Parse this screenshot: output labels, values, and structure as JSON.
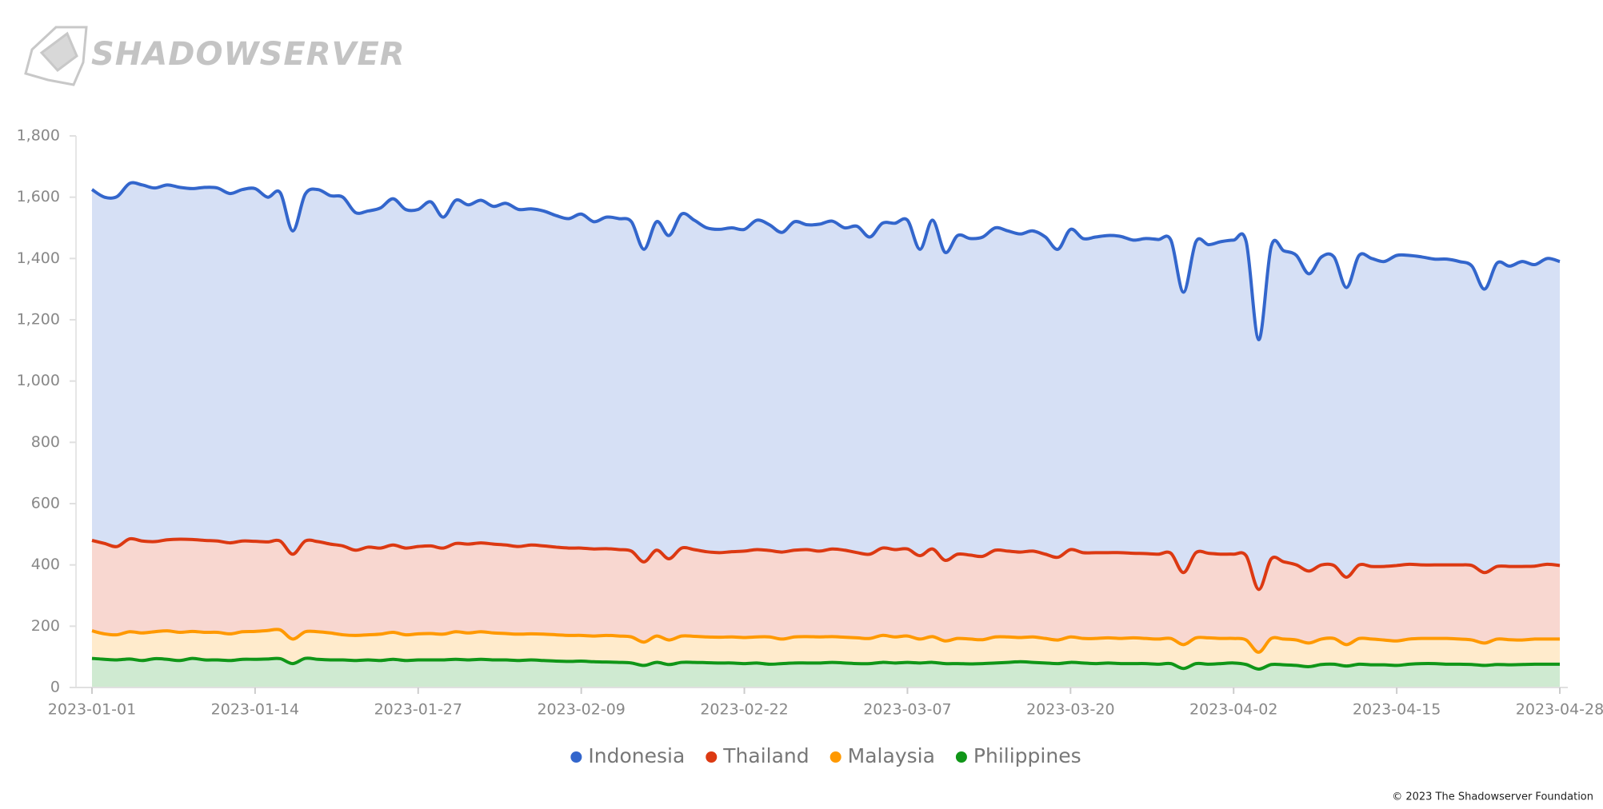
{
  "logo": "SHADOWSERVER",
  "footer": "© 2023 The Shadowserver Foundation",
  "chart_data": {
    "type": "area",
    "categories": [
      "2023-01-01",
      null,
      null,
      null,
      null,
      null,
      null,
      null,
      null,
      null,
      null,
      null,
      null,
      "2023-01-14",
      null,
      null,
      null,
      null,
      null,
      null,
      null,
      null,
      null,
      null,
      null,
      null,
      "2023-01-27",
      null,
      null,
      null,
      null,
      null,
      null,
      null,
      null,
      null,
      null,
      null,
      null,
      "2023-02-09",
      null,
      null,
      null,
      null,
      null,
      null,
      null,
      null,
      null,
      null,
      null,
      null,
      "2023-02-22",
      null,
      null,
      null,
      null,
      null,
      null,
      null,
      null,
      null,
      null,
      null,
      null,
      "2023-03-07",
      null,
      null,
      null,
      null,
      null,
      null,
      null,
      null,
      null,
      null,
      null,
      null,
      "2023-03-20",
      null,
      null,
      null,
      null,
      null,
      null,
      null,
      null,
      null,
      null,
      null,
      null,
      "2023-04-02",
      null,
      null,
      null,
      null,
      null,
      null,
      null,
      null,
      null,
      null,
      null,
      null,
      "2023-04-15",
      null,
      null,
      null,
      null,
      null,
      null,
      null,
      null,
      null,
      null,
      null,
      null,
      "2023-04-28"
    ],
    "series": [
      {
        "name": "Indonesia",
        "color": "#3366cc",
        "fill": "#d6e0f5",
        "values": [
          1625,
          1600,
          1602,
          1645,
          1640,
          1630,
          1640,
          1632,
          1628,
          1632,
          1630,
          1612,
          1625,
          1628,
          1600,
          1615,
          1490,
          1610,
          1625,
          1605,
          1600,
          1550,
          1555,
          1565,
          1595,
          1560,
          1560,
          1585,
          1535,
          1590,
          1575,
          1590,
          1570,
          1580,
          1560,
          1562,
          1555,
          1540,
          1530,
          1545,
          1520,
          1535,
          1530,
          1520,
          1430,
          1520,
          1475,
          1545,
          1525,
          1500,
          1495,
          1500,
          1495,
          1525,
          1510,
          1485,
          1520,
          1510,
          1512,
          1522,
          1500,
          1505,
          1470,
          1515,
          1515,
          1525,
          1430,
          1525,
          1420,
          1475,
          1465,
          1470,
          1500,
          1490,
          1480,
          1490,
          1470,
          1430,
          1495,
          1465,
          1470,
          1475,
          1472,
          1460,
          1465,
          1462,
          1460,
          1290,
          1455,
          1445,
          1455,
          1460,
          1455,
          1135,
          1440,
          1425,
          1410,
          1350,
          1405,
          1405,
          1305,
          1410,
          1400,
          1390,
          1410,
          1410,
          1405,
          1398,
          1398,
          1390,
          1375,
          1300,
          1385,
          1375,
          1390,
          1380,
          1400,
          1390
        ]
      },
      {
        "name": "Thailand",
        "color": "#dc3912",
        "fill": "#f8d7d0",
        "values": [
          480,
          470,
          460,
          485,
          478,
          476,
          482,
          484,
          483,
          480,
          478,
          472,
          478,
          477,
          475,
          478,
          435,
          478,
          476,
          468,
          462,
          448,
          458,
          455,
          465,
          455,
          460,
          462,
          455,
          470,
          468,
          472,
          468,
          465,
          460,
          465,
          462,
          458,
          455,
          455,
          452,
          453,
          450,
          445,
          410,
          448,
          420,
          455,
          450,
          443,
          440,
          443,
          445,
          450,
          447,
          442,
          448,
          450,
          445,
          452,
          448,
          440,
          435,
          455,
          450,
          452,
          430,
          452,
          415,
          435,
          432,
          428,
          448,
          445,
          442,
          445,
          435,
          425,
          450,
          440,
          440,
          440,
          440,
          438,
          437,
          435,
          438,
          375,
          440,
          438,
          435,
          435,
          430,
          320,
          420,
          410,
          400,
          380,
          400,
          398,
          360,
          400,
          395,
          395,
          398,
          402,
          400,
          400,
          400,
          400,
          398,
          375,
          395,
          395,
          395,
          396,
          402,
          398
        ]
      },
      {
        "name": "Malaysia",
        "color": "#ff9900",
        "fill": "#ffebcc",
        "values": [
          185,
          175,
          172,
          182,
          178,
          182,
          185,
          180,
          183,
          180,
          180,
          175,
          182,
          183,
          186,
          188,
          158,
          182,
          182,
          178,
          172,
          170,
          172,
          174,
          180,
          172,
          175,
          176,
          174,
          182,
          178,
          182,
          178,
          176,
          174,
          175,
          174,
          172,
          170,
          170,
          168,
          170,
          168,
          165,
          148,
          168,
          155,
          168,
          167,
          165,
          164,
          165,
          163,
          165,
          165,
          158,
          165,
          166,
          165,
          166,
          164,
          162,
          160,
          170,
          165,
          168,
          158,
          166,
          152,
          160,
          158,
          156,
          165,
          165,
          163,
          165,
          160,
          155,
          165,
          160,
          160,
          162,
          160,
          162,
          160,
          158,
          160,
          140,
          162,
          162,
          160,
          160,
          155,
          115,
          160,
          158,
          155,
          145,
          158,
          160,
          140,
          160,
          158,
          155,
          152,
          158,
          160,
          160,
          160,
          158,
          155,
          145,
          158,
          156,
          155,
          158,
          158,
          158
        ]
      },
      {
        "name": "Philippines",
        "color": "#109618",
        "fill": "#cfead1",
        "values": [
          95,
          92,
          90,
          93,
          88,
          94,
          92,
          88,
          95,
          90,
          90,
          88,
          92,
          92,
          93,
          94,
          78,
          95,
          92,
          90,
          90,
          88,
          90,
          88,
          92,
          88,
          90,
          90,
          90,
          92,
          90,
          92,
          90,
          90,
          88,
          90,
          88,
          86,
          85,
          86,
          84,
          83,
          82,
          80,
          72,
          82,
          75,
          82,
          82,
          81,
          80,
          80,
          78,
          80,
          76,
          78,
          80,
          80,
          80,
          82,
          80,
          78,
          78,
          82,
          80,
          82,
          80,
          82,
          78,
          78,
          77,
          78,
          80,
          82,
          84,
          82,
          80,
          78,
          82,
          80,
          78,
          80,
          78,
          78,
          78,
          76,
          78,
          62,
          78,
          76,
          78,
          80,
          75,
          60,
          75,
          74,
          72,
          68,
          75,
          76,
          70,
          76,
          74,
          74,
          72,
          76,
          78,
          78,
          76,
          76,
          75,
          72,
          75,
          74,
          75,
          76,
          76,
          76
        ]
      }
    ],
    "ylim": [
      0,
      1800
    ],
    "yticks": [
      0,
      200,
      400,
      600,
      800,
      {
        "value": 1000,
        "label": "1,000"
      },
      {
        "value": 1200,
        "label": "1,200"
      },
      {
        "value": 1400,
        "label": "1,400"
      },
      {
        "value": 1600,
        "label": "1,600"
      },
      {
        "value": 1800,
        "label": "1,800"
      }
    ],
    "grid": false,
    "legend": "bottom"
  }
}
